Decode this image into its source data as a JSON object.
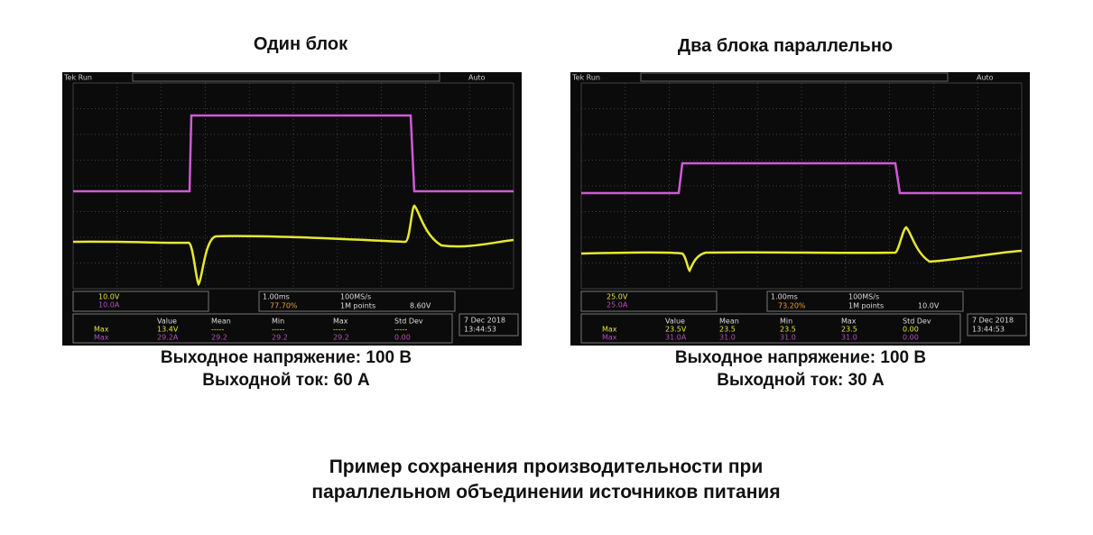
{
  "panels": [
    {
      "title": "Один блок",
      "scope": {
        "status": "Tek Run",
        "mode": "Auto",
        "ch1_scale": "10.0V",
        "ch2_scale": "10.0A",
        "timebase": "1.00ms",
        "sample_rate": "100MS/s",
        "record": "1M points",
        "trigger_pos": "77.70%",
        "trigger_level": "8.60V",
        "meas_headers": [
          "Value",
          "Mean",
          "Min",
          "Max",
          "Std Dev"
        ],
        "meas_rows": [
          [
            "Max",
            "13.4V",
            "-----",
            "-----",
            "-----",
            "-----"
          ],
          [
            "Max",
            "29.2A",
            "29.2",
            "29.2",
            "29.2",
            "0.00"
          ]
        ],
        "date": "7 Dec 2018",
        "time": "13:44:53"
      },
      "captions": [
        "Выходное напряжение: 100 В",
        "Выходной ток: 60 А"
      ]
    },
    {
      "title": "Два блока параллельно",
      "scope": {
        "status": "Tek Run",
        "mode": "Auto",
        "ch1_scale": "25.0V",
        "ch2_scale": "25.0A",
        "timebase": "1.00ms",
        "sample_rate": "100MS/s",
        "record": "1M points",
        "trigger_pos": "73.20%",
        "trigger_level": "10.0V",
        "meas_headers": [
          "Value",
          "Mean",
          "Min",
          "Max",
          "Std Dev"
        ],
        "meas_rows": [
          [
            "Max",
            "23.5V",
            "23.5",
            "23.5",
            "23.5",
            "0.00"
          ],
          [
            "Max",
            "31.0A",
            "31.0",
            "31.0",
            "31.0",
            "0.00"
          ]
        ],
        "date": "7 Dec 2018",
        "time": "13:44:53"
      },
      "captions": [
        "Выходное напряжение: 100 В",
        "Выходной ток: 30 А"
      ]
    }
  ],
  "caption": [
    "Пример сохранения производительности при",
    "параллельном объединении источников питания"
  ]
}
